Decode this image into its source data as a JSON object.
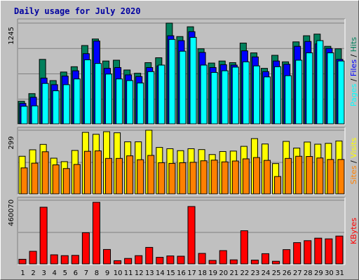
{
  "chart_data": {
    "type": "bar",
    "title": "Daily usage for July 2020",
    "categories": [
      "1",
      "2",
      "3",
      "4",
      "5",
      "6",
      "7",
      "8",
      "9",
      "10",
      "11",
      "12",
      "13",
      "14",
      "15",
      "16",
      "17",
      "18",
      "19",
      "20",
      "21",
      "22",
      "23",
      "24",
      "25",
      "26",
      "27",
      "28",
      "29",
      "30",
      "31"
    ],
    "weekend_days": [
      4,
      5,
      11,
      12,
      18,
      19,
      25,
      26
    ],
    "colors": {
      "hits": "#00805c",
      "files": "#0000ff",
      "pages": "#00ffff",
      "visits": "#ffff00",
      "sites": "#ff8000",
      "kbytes": "#ff0000",
      "weekday_label": "#000000",
      "weekend_label": "#00805c",
      "title": "#0000a0"
    },
    "panels": [
      {
        "id": "hits-files-pages",
        "max_label": "1245",
        "ymax": 1245,
        "legend": [
          {
            "text": "Hits",
            "color": "#00805c"
          },
          {
            "text": "Files",
            "color": "#0000ff"
          },
          {
            "text": "Pages",
            "color": "#00ffff"
          }
        ],
        "series": [
          {
            "name": "Hits",
            "color": "#00805c",
            "values": [
              286,
              380,
              800,
              540,
              645,
              710,
              970,
              1050,
              780,
              790,
              670,
              630,
              760,
              820,
              1245,
              1080,
              1200,
              930,
              755,
              780,
              760,
              1000,
              880,
              690,
              850,
              770,
              1015,
              1090,
              1110,
              960,
              930
            ]
          },
          {
            "name": "Files",
            "color": "#0000ff",
            "values": [
              260,
              335,
              570,
              490,
              595,
              660,
              870,
              1025,
              690,
              700,
              610,
              590,
              700,
              720,
              1090,
              1030,
              1140,
              885,
              700,
              735,
              730,
              905,
              830,
              650,
              780,
              740,
              960,
              1020,
              990,
              935,
              800
            ]
          },
          {
            "name": "Pages",
            "color": "#00ffff",
            "values": [
              225,
              230,
              505,
              415,
              490,
              560,
              795,
              750,
              620,
              560,
              540,
              510,
              650,
              730,
              1045,
              900,
              1070,
              730,
              640,
              660,
              705,
              770,
              720,
              585,
              710,
              600,
              790,
              880,
              1030,
              880,
              780
            ]
          }
        ]
      },
      {
        "id": "visits-sites",
        "max_label": "299",
        "ymax": 299,
        "legend": [
          {
            "text": "Visits",
            "color": "#ffff00"
          },
          {
            "text": "Sites",
            "color": "#ff8000"
          }
        ],
        "series": [
          {
            "name": "Visits",
            "color": "#ffff00",
            "values": [
              178,
              208,
              233,
              169,
              153,
              205,
              289,
              280,
              292,
              287,
              245,
              245,
              299,
              219,
              213,
              204,
              213,
              209,
              186,
              200,
              202,
              224,
              260,
              235,
              144,
              247,
              216,
              244,
              234,
              238,
              249
            ]
          },
          {
            "name": "Sites",
            "color": "#ff8000",
            "values": [
              124,
              146,
              199,
              138,
              121,
              140,
              201,
              203,
              168,
              168,
              180,
              162,
              182,
              148,
              145,
              148,
              150,
              157,
              160,
              152,
              156,
              166,
              172,
              159,
              84,
              168,
              178,
              177,
              170,
              163,
              163
            ]
          }
        ]
      },
      {
        "id": "kbytes",
        "max_label": "460070",
        "ymax": 460070,
        "legend": [
          {
            "text": "KBytes",
            "color": "#ff0000"
          }
        ],
        "series": [
          {
            "name": "KBytes",
            "color": "#ff0000",
            "values": [
              38000,
              95000,
              410000,
              70000,
              64000,
              66000,
              228000,
              445000,
              108000,
              28000,
              44000,
              64000,
              123000,
              52000,
              62000,
              60000,
              415000,
              80000,
              30000,
              100000,
              34000,
              242000,
              32000,
              78000,
              24000,
              107000,
              157000,
              171000,
              189000,
              184000,
              204000
            ]
          }
        ]
      }
    ]
  }
}
